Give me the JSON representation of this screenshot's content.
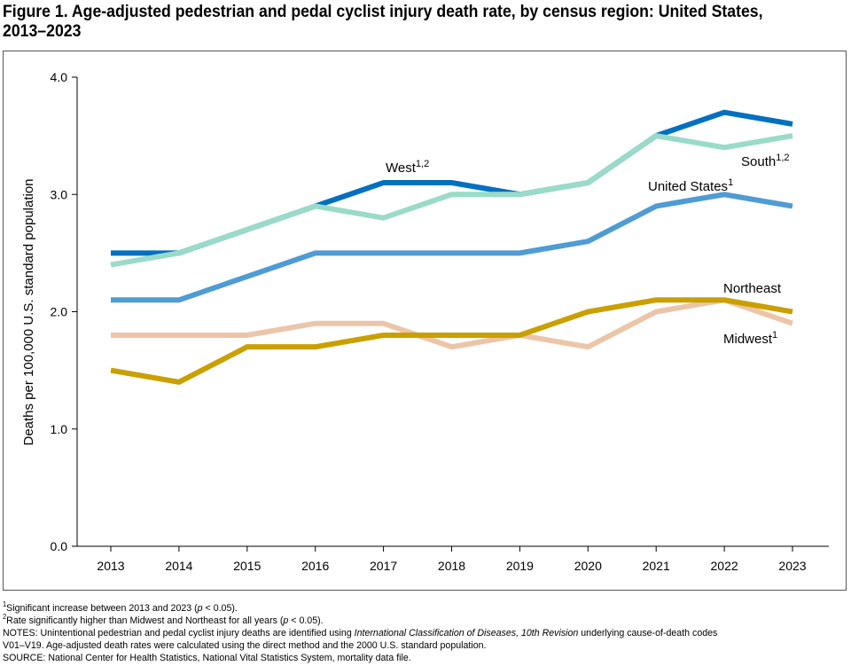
{
  "title": "Figure 1. Age-adjusted pedestrian and pedal cyclist injury death rate, by census region: United States, 2013–2023",
  "chart_data": {
    "type": "line",
    "title": "Figure 1. Age-adjusted pedestrian and pedal cyclist injury death rate, by census region: United States, 2013–2023",
    "xlabel": "",
    "ylabel": "Deaths per 100,000 U.S. standard population",
    "ylim": [
      0,
      4.0
    ],
    "yticks": [
      "0.0",
      "1.0",
      "2.0",
      "3.0",
      "4.0"
    ],
    "x": [
      "2013",
      "2014",
      "2015",
      "2016",
      "2017",
      "2018",
      "2019",
      "2020",
      "2021",
      "2022",
      "2023"
    ],
    "grid": false,
    "series": [
      {
        "name": "West",
        "sup": "1,2",
        "color": "#0070c0",
        "values": [
          2.5,
          2.5,
          2.7,
          2.9,
          3.1,
          3.1,
          3.0,
          3.1,
          3.5,
          3.7,
          3.6
        ]
      },
      {
        "name": "South",
        "sup": "1,2",
        "color": "#99dbc8",
        "values": [
          2.4,
          2.5,
          2.7,
          2.9,
          2.8,
          3.0,
          3.0,
          3.1,
          3.5,
          3.4,
          3.5
        ]
      },
      {
        "name": "United States",
        "sup": "1",
        "color": "#4f9cd4",
        "values": [
          2.1,
          2.1,
          2.3,
          2.5,
          2.5,
          2.5,
          2.5,
          2.6,
          2.9,
          3.0,
          2.9
        ]
      },
      {
        "name": "Northeast",
        "sup": "",
        "color": "#ecc5a8",
        "values": [
          1.8,
          1.8,
          1.8,
          1.9,
          1.9,
          1.7,
          1.8,
          1.7,
          2.0,
          2.1,
          1.9
        ]
      },
      {
        "name": "Midwest",
        "sup": "1",
        "color": "#c9a000",
        "values": [
          1.5,
          1.4,
          1.7,
          1.7,
          1.8,
          1.8,
          1.8,
          2.0,
          2.1,
          2.1,
          2.0
        ]
      }
    ]
  },
  "notes": {
    "fn1_mark": "1",
    "fn1_a": "Significant increase between 2013 and 2023 (",
    "fn1_p": "p",
    "fn1_b": " < 0.05).",
    "fn2_mark": "2",
    "fn2_a": "Rate significantly higher than Midwest and Northeast for all years (",
    "fn2_p": "p",
    "fn2_b": " < 0.05).",
    "notes_a": "NOTES: Unintentional pedestrian and pedal cyclist injury deaths are identified using ",
    "notes_i": "International Classification of Diseases, 10th Revision",
    "notes_b": " underlying cause-of-death codes",
    "notes_c": "V01–V19. Age-adjusted death rates were calculated using the direct method and the 2000 U.S. standard population.",
    "source": "SOURCE: National Center for Health Statistics, National Vital Statistics System, mortality data file."
  }
}
